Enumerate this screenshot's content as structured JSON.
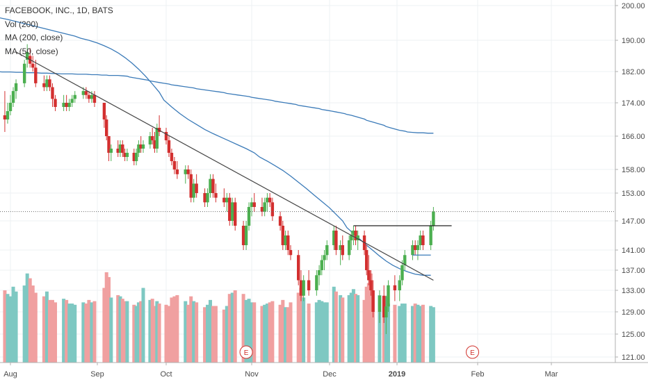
{
  "legend": {
    "title": "FACEBOOK, INC., 1D, BATS",
    "volume": "Vol (200)",
    "ma200": "MA (200, close)",
    "ma50": "MA (50, close)"
  },
  "colors": {
    "up": "#4caf50",
    "down": "#d32f2f",
    "vol_up": "#7ec8c2",
    "vol_down": "#f0a0a0",
    "ma": "#3a7ab8",
    "trendline": "#444444",
    "grid": "#eef0f3",
    "axis_text": "#4a4a4a",
    "event": "#d0302b"
  },
  "chart_data": {
    "type": "candlestick",
    "title": "FACEBOOK, INC., 1D, BATS",
    "ylim": [
      120,
      201
    ],
    "y_scale": "log",
    "y_ticks": [
      "200.00",
      "190.00",
      "182.00",
      "174.00",
      "166.00",
      "158.00",
      "153.00",
      "147.00",
      "141.00",
      "137.00",
      "133.00",
      "129.00",
      "125.00",
      "121.00"
    ],
    "x_ticks": [
      "Aug",
      "Sep",
      "Oct",
      "Nov",
      "Dec",
      "2019",
      "Feb",
      "Mar"
    ],
    "last_close": 149.0,
    "ohlc_dates": [
      "2018-07-27",
      "2018-07-30",
      "2018-07-31",
      "2018-08-01",
      "2018-08-02",
      "2018-08-03",
      "2018-08-06",
      "2018-08-07",
      "2018-08-08",
      "2018-08-09",
      "2018-08-10",
      "2018-08-13",
      "2018-08-14",
      "2018-08-15",
      "2018-08-16",
      "2018-08-17",
      "2018-08-20",
      "2018-08-21",
      "2018-08-22",
      "2018-08-23",
      "2018-08-24",
      "2018-08-27",
      "2018-08-28",
      "2018-08-29",
      "2018-08-30",
      "2018-08-31",
      "2018-09-04",
      "2018-09-05",
      "2018-09-06",
      "2018-09-07",
      "2018-09-10",
      "2018-09-11",
      "2018-09-12",
      "2018-09-13",
      "2018-09-14",
      "2018-09-17",
      "2018-09-18",
      "2018-09-19",
      "2018-09-20",
      "2018-09-21",
      "2018-09-24",
      "2018-09-25",
      "2018-09-26",
      "2018-09-27",
      "2018-09-28",
      "2018-10-01",
      "2018-10-02",
      "2018-10-03",
      "2018-10-04",
      "2018-10-05",
      "2018-10-08",
      "2018-10-09",
      "2018-10-10",
      "2018-10-11",
      "2018-10-12",
      "2018-10-15",
      "2018-10-16",
      "2018-10-17",
      "2018-10-18",
      "2018-10-19",
      "2018-10-22",
      "2018-10-23",
      "2018-10-24",
      "2018-10-25",
      "2018-10-26",
      "2018-10-29",
      "2018-10-30",
      "2018-10-31",
      "2018-11-01",
      "2018-11-02",
      "2018-11-05",
      "2018-11-06",
      "2018-11-07",
      "2018-11-08",
      "2018-11-09",
      "2018-11-12",
      "2018-11-13",
      "2018-11-14",
      "2018-11-15",
      "2018-11-16",
      "2018-11-19",
      "2018-11-20",
      "2018-11-21",
      "2018-11-23",
      "2018-11-26",
      "2018-11-27",
      "2018-11-28",
      "2018-11-29",
      "2018-11-30",
      "2018-12-03",
      "2018-12-04",
      "2018-12-06",
      "2018-12-07",
      "2018-12-10",
      "2018-12-11",
      "2018-12-12",
      "2018-12-13",
      "2018-12-14",
      "2018-12-17",
      "2018-12-18",
      "2018-12-19",
      "2018-12-20",
      "2018-12-21",
      "2018-12-24",
      "2018-12-26",
      "2018-12-27",
      "2018-12-28",
      "2018-12-31",
      "2019-01-02",
      "2019-01-03",
      "2019-01-04",
      "2019-01-07",
      "2019-01-08",
      "2019-01-09",
      "2019-01-10",
      "2019-01-11",
      "2019-01-14",
      "2019-01-15"
    ],
    "ohlc": [
      [
        181,
        184,
        168,
        171
      ],
      [
        171,
        177,
        167,
        170
      ],
      [
        170,
        174,
        169,
        172
      ],
      [
        172,
        176,
        171,
        174
      ],
      [
        174,
        178,
        173,
        177
      ],
      [
        177,
        180,
        175,
        179
      ],
      [
        179,
        185,
        178,
        184
      ],
      [
        185,
        189,
        183,
        187
      ],
      [
        186,
        188,
        183,
        184
      ],
      [
        184,
        186,
        182,
        183
      ],
      [
        183,
        185,
        178,
        179
      ],
      [
        179,
        181,
        177,
        178
      ],
      [
        178,
        181,
        177,
        180
      ],
      [
        180,
        181,
        177,
        178
      ],
      [
        178,
        179,
        173,
        175
      ],
      [
        175,
        176,
        172,
        173
      ],
      [
        173,
        176,
        172,
        174
      ],
      [
        174,
        176,
        172,
        173
      ],
      [
        173,
        175,
        172,
        174
      ],
      [
        174,
        176,
        173,
        175
      ],
      [
        175,
        177,
        174,
        176
      ],
      [
        176,
        178,
        175,
        177
      ],
      [
        177,
        178,
        175,
        176
      ],
      [
        176,
        177,
        174,
        175
      ],
      [
        175,
        177,
        174,
        176
      ],
      [
        176,
        177,
        173,
        174
      ],
      [
        174,
        174,
        168,
        170
      ],
      [
        170,
        171,
        165,
        166
      ],
      [
        166,
        166,
        160,
        162
      ],
      [
        162,
        164,
        160,
        163
      ],
      [
        163,
        165,
        161,
        162
      ],
      [
        162,
        165,
        161,
        164
      ],
      [
        164,
        165,
        161,
        162
      ],
      [
        162,
        163,
        160,
        161
      ],
      [
        161,
        163,
        160,
        162
      ],
      [
        162,
        163,
        159,
        160
      ],
      [
        160,
        163,
        159,
        162
      ],
      [
        162,
        165,
        161,
        164
      ],
      [
        164,
        166,
        162,
        163
      ],
      [
        163,
        165,
        162,
        164
      ],
      [
        164,
        167,
        163,
        166
      ],
      [
        166,
        168,
        164,
        165
      ],
      [
        165,
        167,
        162,
        163
      ],
      [
        163,
        169,
        162,
        168
      ],
      [
        168,
        171,
        166,
        167
      ],
      [
        167,
        168,
        164,
        165
      ],
      [
        165,
        166,
        161,
        162
      ],
      [
        162,
        163,
        159,
        160
      ],
      [
        160,
        161,
        157,
        158
      ],
      [
        158,
        160,
        156,
        157
      ],
      [
        157,
        159,
        155,
        158
      ],
      [
        158,
        159,
        156,
        157
      ],
      [
        157,
        158,
        151,
        152
      ],
      [
        152,
        156,
        151,
        155
      ],
      [
        155,
        157,
        152,
        153
      ],
      [
        153,
        154,
        150,
        151
      ],
      [
        151,
        154,
        150,
        153
      ],
      [
        153,
        157,
        152,
        156
      ],
      [
        156,
        157,
        152,
        153
      ],
      [
        153,
        155,
        151,
        152
      ],
      [
        152,
        154,
        150,
        151
      ],
      [
        151,
        153,
        149,
        152
      ],
      [
        152,
        153,
        146,
        147
      ],
      [
        147,
        152,
        146,
        151
      ],
      [
        151,
        152,
        145,
        146
      ],
      [
        146,
        147,
        141,
        142
      ],
      [
        142,
        147,
        141,
        146
      ],
      [
        146,
        151,
        145,
        150
      ],
      [
        150,
        152,
        148,
        151
      ],
      [
        151,
        153,
        149,
        150
      ],
      [
        150,
        152,
        148,
        149
      ],
      [
        149,
        152,
        148,
        151
      ],
      [
        151,
        153,
        149,
        152
      ],
      [
        152,
        153,
        150,
        151
      ],
      [
        151,
        152,
        147,
        148
      ],
      [
        148,
        149,
        145,
        146
      ],
      [
        146,
        147,
        141,
        142
      ],
      [
        142,
        145,
        141,
        144
      ],
      [
        144,
        145,
        140,
        141
      ],
      [
        141,
        142,
        139,
        140
      ],
      [
        140,
        141,
        134,
        135
      ],
      [
        135,
        137,
        131,
        132
      ],
      [
        132,
        136,
        131,
        135
      ],
      [
        135,
        137,
        132,
        133
      ],
      [
        133,
        137,
        132,
        136
      ],
      [
        136,
        138,
        134,
        137
      ],
      [
        137,
        140,
        136,
        139
      ],
      [
        139,
        141,
        137,
        140
      ],
      [
        140,
        143,
        139,
        142
      ],
      [
        142,
        146,
        141,
        145
      ],
      [
        145,
        146,
        140,
        141
      ],
      [
        141,
        143,
        138,
        142
      ],
      [
        142,
        144,
        139,
        140
      ],
      [
        140,
        144,
        139,
        143
      ],
      [
        143,
        145,
        141,
        144
      ],
      [
        144,
        146,
        142,
        145
      ],
      [
        145,
        146,
        142,
        143
      ],
      [
        143,
        145,
        141,
        144
      ],
      [
        144,
        145,
        140,
        141
      ],
      [
        141,
        142,
        136,
        137
      ],
      [
        137,
        140,
        134,
        135
      ],
      [
        135,
        137,
        132,
        133
      ],
      [
        133,
        135,
        128,
        129
      ],
      [
        129,
        133,
        127,
        132
      ],
      [
        132,
        134,
        127,
        128
      ],
      [
        128,
        132,
        125,
        130
      ],
      [
        130,
        135,
        129,
        134
      ],
      [
        134,
        136,
        131,
        133
      ],
      [
        133,
        136,
        131,
        135
      ],
      [
        135,
        139,
        134,
        138
      ],
      [
        138,
        141,
        137,
        140
      ],
      [
        140,
        143,
        139,
        142
      ],
      [
        142,
        143,
        140,
        141
      ],
      [
        141,
        143,
        139,
        142
      ],
      [
        142,
        145,
        141,
        144
      ],
      [
        144,
        145,
        141,
        142
      ],
      [
        142,
        147,
        141,
        146
      ],
      [
        146,
        150,
        145,
        149
      ]
    ],
    "volume_dates_note": "volume bars aligned with ohlc dates",
    "volume": [
      69,
      60,
      57,
      55,
      63,
      59,
      64,
      74,
      70,
      64,
      58,
      55,
      59,
      52,
      52,
      50,
      53,
      52,
      49,
      49,
      48,
      50,
      49,
      52,
      50,
      51,
      62,
      75,
      71,
      54,
      56,
      55,
      53,
      51,
      51,
      48,
      47,
      50,
      51,
      62,
      52,
      53,
      47,
      51,
      49,
      48,
      47,
      54,
      55,
      56,
      51,
      48,
      55,
      51,
      50,
      46,
      48,
      52,
      47,
      47,
      44,
      47,
      57,
      58,
      60,
      57,
      52,
      53,
      50,
      50,
      47,
      48,
      49,
      50,
      51,
      48,
      52,
      46,
      46,
      50,
      58,
      62,
      54,
      49,
      50,
      52,
      51,
      50,
      50,
      63,
      59,
      56,
      54,
      56,
      58,
      61,
      57,
      56,
      52,
      63,
      66,
      74,
      60,
      56,
      55,
      55,
      49,
      48,
      47,
      49,
      49,
      47,
      49,
      48,
      47,
      48,
      47,
      46
    ],
    "ma200": [
      182.2,
      182.1,
      182.0,
      182.0,
      182.0,
      181.9,
      181.9,
      181.9,
      181.8,
      181.8,
      181.7,
      181.7,
      181.7,
      181.6,
      181.6,
      181.5,
      181.5,
      181.4,
      181.4,
      181.4,
      181.3,
      181.3,
      181.3,
      181.2,
      181.2,
      181.1,
      181.1,
      181.0,
      181.0,
      181.0,
      180.9,
      180.8,
      180.6,
      180.4,
      180.2,
      180.0,
      179.8,
      179.6,
      179.4,
      179.2,
      179.0,
      178.8,
      178.6,
      178.4,
      178.2,
      178.0,
      177.8,
      177.6,
      177.4,
      177.2,
      177.0,
      176.8,
      176.6,
      176.4,
      176.2,
      176.0,
      175.8,
      175.6,
      175.4,
      175.2,
      175.0,
      174.8,
      174.6,
      174.4,
      174.2,
      174.0,
      173.8,
      173.6,
      173.4,
      173.2,
      173.0,
      172.8,
      172.6,
      172.4,
      172.2,
      172.0,
      171.8,
      171.6,
      171.4,
      171.2,
      171.0,
      170.7,
      170.4,
      170.1,
      169.8,
      169.5,
      169.2,
      168.9,
      168.6,
      168.3,
      168.0,
      167.7,
      167.4,
      167.2,
      167.0,
      166.9,
      166.8,
      166.8,
      166.7,
      166.7
    ],
    "ma50": [
      198.0,
      197.5,
      197.0,
      196.5,
      196.0,
      195.4,
      194.8,
      194.2,
      193.6,
      193.0,
      192.4,
      191.8,
      191.2,
      190.6,
      190.0,
      189.3,
      188.6,
      187.8,
      186.8,
      185.6,
      184.2,
      182.6,
      180.8,
      178.8,
      176.7,
      174.7,
      173.0,
      171.4,
      170.0,
      168.8,
      167.6,
      166.6,
      165.7,
      164.8,
      163.9,
      163.0,
      162.0,
      161.0,
      160.0,
      158.9,
      157.8,
      156.6,
      155.3,
      154.0,
      152.6,
      151.2,
      149.8,
      148.4,
      147.0,
      145.6,
      144.4,
      143.2,
      142.0,
      140.9,
      139.8,
      138.8,
      138.0,
      137.3,
      136.7,
      136.2,
      136.0,
      136.0
    ],
    "trendline": {
      "start": [
        "2018-08-03",
        187.0
      ],
      "end": [
        "2019-01-15",
        135.0
      ]
    },
    "resistance_line": {
      "level": 146.0,
      "from": "2018-12-12",
      "to": "2019-01-22"
    },
    "support_line": {
      "level": 140.0,
      "from": "2019-01-07",
      "to": "2019-01-14"
    },
    "events": [
      {
        "label": "E",
        "date": "2018-10-30"
      },
      {
        "label": "E",
        "date": "2019-01-30"
      }
    ]
  },
  "axes": {
    "y_labels": [
      "200.00",
      "190.00",
      "182.00",
      "174.00",
      "166.00",
      "158.00",
      "153.00",
      "147.00",
      "141.00",
      "137.00",
      "133.00",
      "129.00",
      "125.00",
      "121.00"
    ],
    "x_labels": [
      "Aug",
      "Sep",
      "Oct",
      "Nov",
      "Dec",
      "2019",
      "Feb",
      "Mar"
    ]
  }
}
